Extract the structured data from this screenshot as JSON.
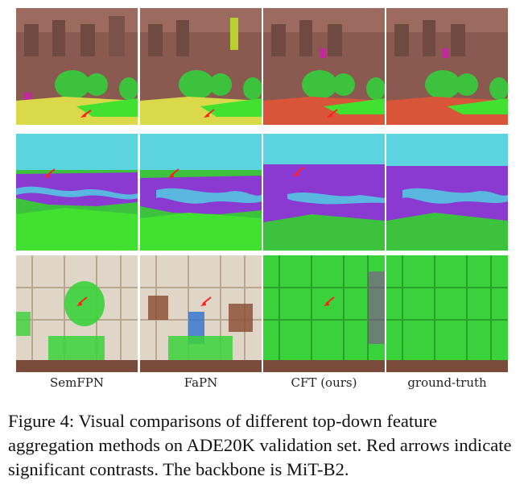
{
  "columns": [
    "SemFPN",
    "FaPN",
    "CFT (ours)",
    "ground-truth"
  ],
  "caption": "Figure 4: Visual comparisons of different top-down feature aggregation methods on ADE20K validation set. Red arrows indicate significant contrasts. The backbone is MiT-B2.",
  "colors": {
    "sky": "#5cd4e0",
    "building": "#8a5a50",
    "plant": "#3cc23c",
    "grass_bright": "#42e030",
    "road_yellow": "#d9d94a",
    "road_red": "#d9553a",
    "water": "#5ab8e0",
    "land_purple": "#8a3ad0",
    "door_glass": "#e0d6c8",
    "door_green": "#3ad23a",
    "floor": "#7a4a3a",
    "arrow": "#ff2020"
  }
}
